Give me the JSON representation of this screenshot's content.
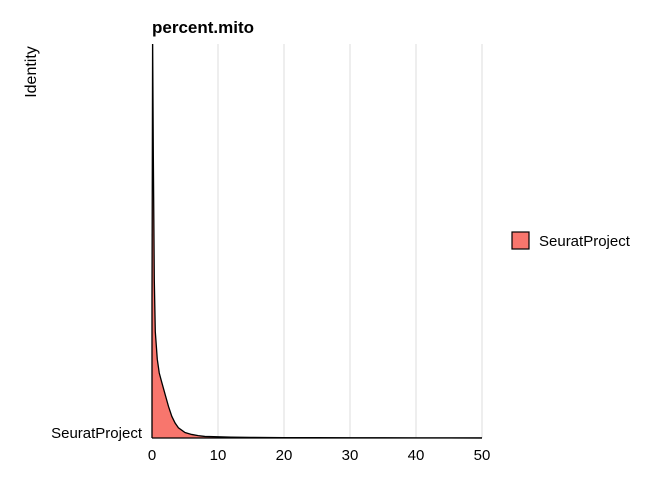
{
  "chart_data": {
    "type": "area",
    "chart_kind": "ridgeline-density",
    "title": "percent.mito",
    "xlabel": "",
    "ylabel": "Identity",
    "xlim": [
      0,
      50
    ],
    "xticks": [
      0,
      10,
      20,
      30,
      40,
      50
    ],
    "categories": [
      "SeuratProject"
    ],
    "grid": "vertical major lines",
    "legend": {
      "position": "right",
      "entries": [
        "SeuratProject"
      ]
    },
    "series": [
      {
        "name": "SeuratProject",
        "color": "#F8766D",
        "x": [
          0,
          0.1,
          0.2,
          0.35,
          0.5,
          0.8,
          1.1,
          1.5,
          2,
          2.5,
          3,
          3.5,
          4,
          5,
          6,
          7,
          8,
          10,
          12,
          15,
          20,
          25,
          30,
          35,
          40,
          45,
          50
        ],
        "density": [
          0.35,
          1.0,
          0.72,
          0.4,
          0.27,
          0.2,
          0.165,
          0.14,
          0.11,
          0.08,
          0.055,
          0.038,
          0.026,
          0.014,
          0.009,
          0.006,
          0.004,
          0.003,
          0.002,
          0.0015,
          0.001,
          0.0008,
          0.0006,
          0.0005,
          0.0004,
          0.0003,
          0.0002
        ]
      }
    ]
  }
}
